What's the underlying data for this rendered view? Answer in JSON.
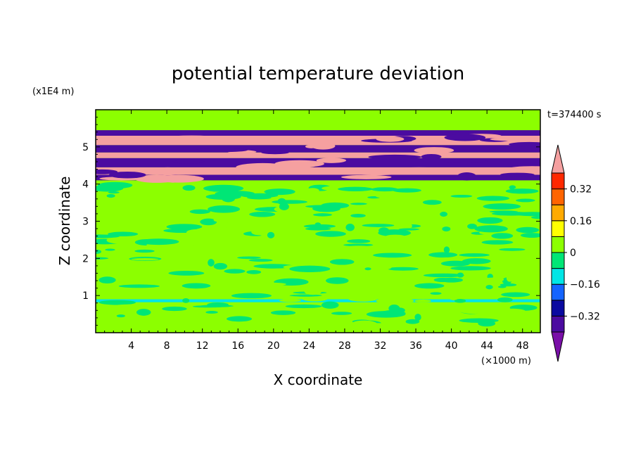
{
  "chart_data": {
    "type": "heatmap",
    "title": "potential temperature deviation",
    "xlabel": "X coordinate",
    "ylabel": "Z coordinate",
    "x_unit": "(×1000 m)",
    "y_unit": "(x1E4 m)",
    "time_label": "t=374400 s",
    "xlim": [
      0,
      50
    ],
    "ylim": [
      0,
      6
    ],
    "x_ticks": [
      "4",
      "8",
      "12",
      "16",
      "20",
      "24",
      "28",
      "32",
      "36",
      "40",
      "44",
      "48"
    ],
    "y_ticks": [
      "1",
      "2",
      "3",
      "4",
      "5"
    ],
    "colorbar": {
      "levels": [
        -0.4,
        -0.32,
        -0.24,
        -0.16,
        -0.08,
        0,
        0.08,
        0.16,
        0.24,
        0.32,
        0.4
      ],
      "tick_labels": [
        "0.32",
        "0.16",
        "0",
        "−0.16",
        "−0.32"
      ],
      "colors": [
        "#7a0fa8",
        "#4b0ba0",
        "#0a0aa0",
        "#1464ff",
        "#00e6e6",
        "#00e676",
        "#8cff00",
        "#ffff00",
        "#ffaa00",
        "#ff6400",
        "#ff2800",
        "#f5a0a0"
      ],
      "extend": "both"
    },
    "bands": [
      {
        "z": [
          0.0,
          0.82
        ],
        "value": 0.04
      },
      {
        "z": [
          0.82,
          0.9
        ],
        "value": -0.14
      },
      {
        "z": [
          0.9,
          4.1
        ],
        "value": 0.02
      },
      {
        "z": [
          4.1,
          4.25
        ],
        "value": -0.35
      },
      {
        "z": [
          4.25,
          4.45
        ],
        "value": 0.42
      },
      {
        "z": [
          4.45,
          4.7
        ],
        "value": -0.4
      },
      {
        "z": [
          4.7,
          4.85
        ],
        "value": 0.42
      },
      {
        "z": [
          4.85,
          5.05
        ],
        "value": -0.4
      },
      {
        "z": [
          5.05,
          5.3
        ],
        "value": 0.42
      },
      {
        "z": [
          5.3,
          5.45
        ],
        "value": -0.36
      },
      {
        "z": [
          5.45,
          6.0
        ],
        "value": 0.04
      }
    ]
  }
}
